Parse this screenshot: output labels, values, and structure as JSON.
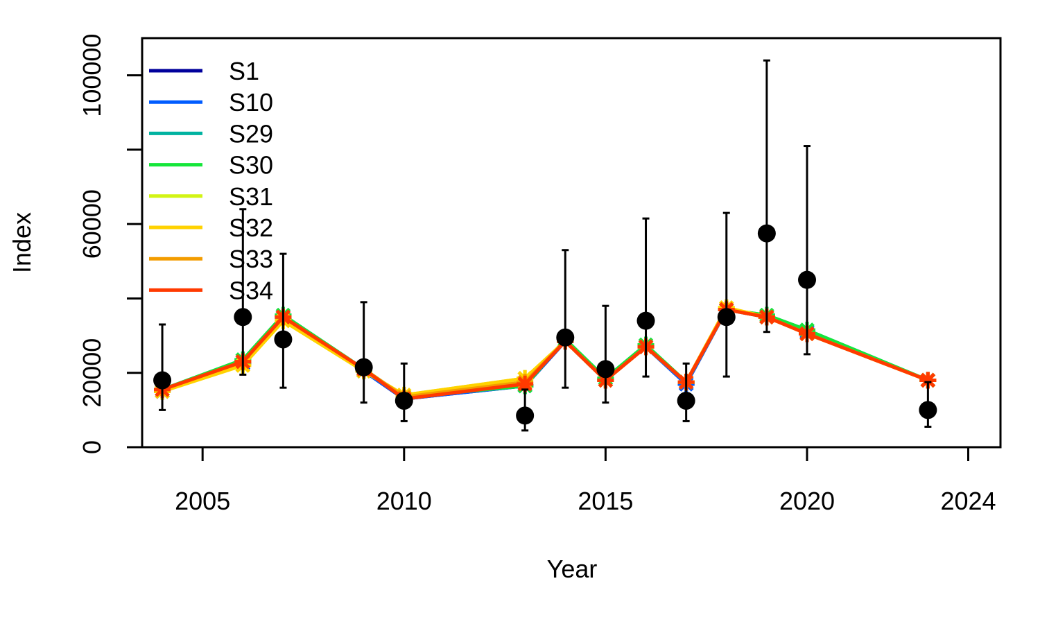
{
  "chart_data": {
    "type": "line",
    "title": "",
    "xlabel": "Year",
    "ylabel": "Index",
    "xlim": [
      2003.5,
      2024.8
    ],
    "ylim": [
      0,
      110000
    ],
    "x_ticks": [
      2005,
      2010,
      2015,
      2020,
      2024
    ],
    "y_ticks": [
      0,
      20000,
      40000,
      60000,
      80000,
      100000
    ],
    "y_tick_labels": [
      "0",
      "20000",
      "",
      "60000",
      "",
      "100000"
    ],
    "grid": false,
    "legend_position": "top-left",
    "x": [
      2004,
      2006,
      2007,
      2009,
      2010,
      2013,
      2014,
      2015,
      2016,
      2017,
      2018,
      2019,
      2020,
      2023
    ],
    "observed": {
      "values": [
        18000,
        35000,
        29000,
        21500,
        12500,
        8500,
        29500,
        21000,
        34000,
        12500,
        35000,
        57500,
        45000,
        10000
      ],
      "lower": [
        10000,
        19500,
        16000,
        12000,
        7000,
        4500,
        16000,
        12000,
        19000,
        7000,
        19000,
        31000,
        25000,
        5500
      ],
      "upper": [
        33000,
        64000,
        52000,
        39000,
        22500,
        15500,
        53000,
        38000,
        61500,
        22500,
        63000,
        104000,
        81000,
        17500
      ],
      "color": "#000000"
    },
    "series": [
      {
        "name": "S1",
        "color": "#00009C",
        "values": [
          15000,
          22500,
          35000,
          20500,
          13000,
          16500,
          28500,
          18000,
          27000,
          17000,
          37000,
          35000,
          31000,
          18000
        ]
      },
      {
        "name": "S10",
        "color": "#005CFF",
        "values": [
          15000,
          22500,
          35000,
          20500,
          13000,
          16500,
          28500,
          18000,
          27000,
          17000,
          37000,
          35000,
          31000,
          18000
        ]
      },
      {
        "name": "S29",
        "color": "#00B3A1",
        "values": [
          15500,
          23500,
          35500,
          21000,
          13500,
          16500,
          29000,
          18500,
          27500,
          17500,
          37000,
          35500,
          31500,
          18000
        ]
      },
      {
        "name": "S30",
        "color": "#15E63A",
        "values": [
          15500,
          23500,
          35500,
          21000,
          13500,
          16500,
          29000,
          18500,
          27500,
          17500,
          37000,
          35500,
          31500,
          18000
        ]
      },
      {
        "name": "S31",
        "color": "#D2F414",
        "values": [
          15500,
          22000,
          34000,
          20500,
          14000,
          18500,
          28500,
          18000,
          27000,
          17500,
          37500,
          35000,
          30500,
          18000
        ]
      },
      {
        "name": "S32",
        "color": "#FFD200",
        "values": [
          15000,
          22000,
          34000,
          20500,
          14000,
          18500,
          28500,
          18000,
          27000,
          17500,
          37500,
          35000,
          30500,
          18000
        ]
      },
      {
        "name": "S33",
        "color": "#F39C00",
        "values": [
          15500,
          23000,
          35000,
          21000,
          13500,
          17500,
          28500,
          18000,
          27000,
          17500,
          37000,
          35000,
          30500,
          18000
        ]
      },
      {
        "name": "S34",
        "color": "#FF3A00",
        "values": [
          15500,
          23000,
          35000,
          21000,
          13000,
          17000,
          28500,
          18000,
          27000,
          17500,
          37000,
          35000,
          30500,
          18000
        ]
      }
    ]
  }
}
